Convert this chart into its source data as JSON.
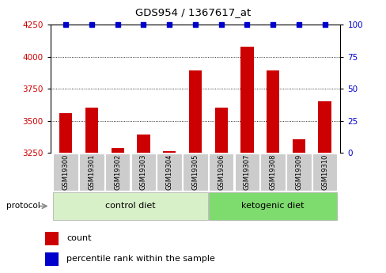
{
  "title": "GDS954 / 1367617_at",
  "samples": [
    "GSM19300",
    "GSM19301",
    "GSM19302",
    "GSM19303",
    "GSM19304",
    "GSM19305",
    "GSM19306",
    "GSM19307",
    "GSM19308",
    "GSM19309",
    "GSM19310"
  ],
  "bar_values": [
    3560,
    3600,
    3290,
    3390,
    3265,
    3890,
    3600,
    4080,
    3890,
    3355,
    3650
  ],
  "pct_markers": [
    100,
    100,
    100,
    100,
    100,
    100,
    100,
    100,
    100,
    100,
    100
  ],
  "bar_color": "#cc0000",
  "percentile_color": "#0000cc",
  "ylim_left": [
    3250,
    4250
  ],
  "ylim_right": [
    0,
    100
  ],
  "yticks_left": [
    3250,
    3500,
    3750,
    4000,
    4250
  ],
  "yticks_right": [
    0,
    25,
    50,
    75,
    100
  ],
  "n_control": 6,
  "n_keto": 5,
  "control_diet_label": "control diet",
  "ketogenic_diet_label": "ketogenic diet",
  "protocol_label": "protocol",
  "legend_count_label": "count",
  "legend_percentile_label": "percentile rank within the sample",
  "control_bg_color": "#d8f0c8",
  "ketogenic_bg_color": "#7edc6e",
  "sample_bg_color": "#cccccc",
  "background_color": "#ffffff"
}
